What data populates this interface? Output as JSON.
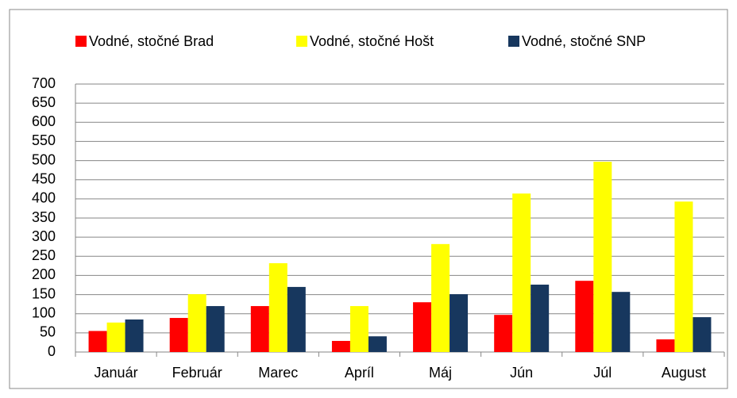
{
  "chart_data": {
    "type": "bar",
    "categories": [
      "Január",
      "Február",
      "Marec",
      "Apríl",
      "Máj",
      "Jún",
      "Júl",
      "August"
    ],
    "series": [
      {
        "name": "Vodné, stočné Brad",
        "color": "#ff0000",
        "values": [
          55,
          89,
          120,
          29,
          130,
          97,
          186,
          33
        ]
      },
      {
        "name": "Vodné, stočné Hošt",
        "color": "#ffff00",
        "values": [
          77,
          151,
          232,
          120,
          282,
          414,
          497,
          393
        ]
      },
      {
        "name": "Vodné, stočné SNP",
        "color": "#17375e",
        "values": [
          85,
          120,
          170,
          41,
          151,
          176,
          157,
          91
        ]
      }
    ],
    "ylim": [
      0,
      700
    ],
    "yticks": [
      0,
      50,
      100,
      150,
      200,
      250,
      300,
      350,
      400,
      450,
      500,
      550,
      600,
      650,
      700
    ],
    "grid": true,
    "legend": "top"
  }
}
